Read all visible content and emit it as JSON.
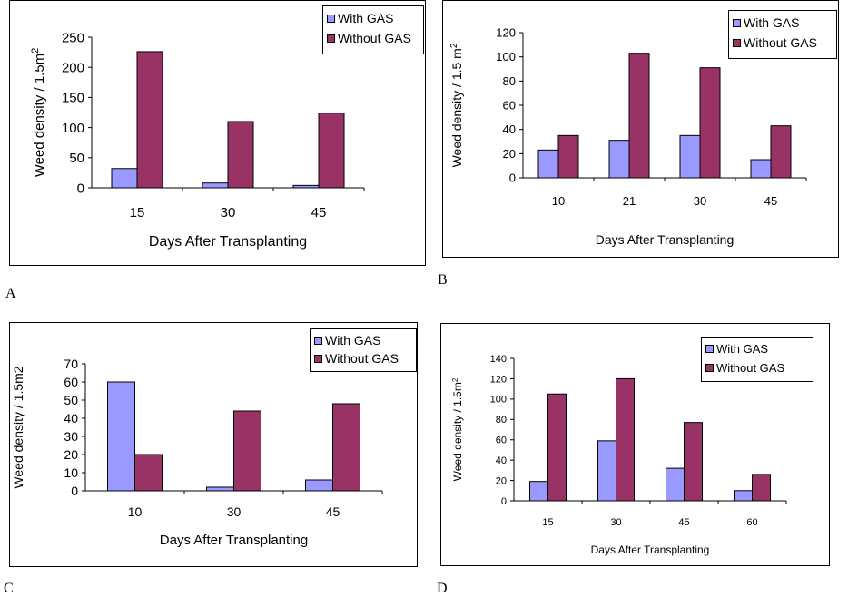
{
  "colors": {
    "with_gas": "#9999ff",
    "without_gas": "#993366",
    "axis": "#000000"
  },
  "panel_letters": [
    "A",
    "B",
    "C",
    "D"
  ],
  "chart_data": [
    {
      "type": "bar",
      "panel": "A",
      "categories": [
        "15",
        "30",
        "45"
      ],
      "series": [
        {
          "name": "With GAS",
          "values": [
            32,
            8,
            4
          ]
        },
        {
          "name": "Without GAS",
          "values": [
            226,
            110,
            124
          ]
        }
      ],
      "xlabel": "Days After Transplanting",
      "ylabel": "Weed density / 1.5m",
      "ylabel_sup": "2",
      "ylim": [
        0,
        250
      ],
      "yticks": [
        "0",
        "50",
        "100",
        "150",
        "200",
        "250"
      ],
      "legend": "top-right"
    },
    {
      "type": "bar",
      "panel": "B",
      "categories": [
        "10",
        "21",
        "30",
        "45"
      ],
      "series": [
        {
          "name": "With GAS",
          "values": [
            23,
            31,
            35,
            15
          ]
        },
        {
          "name": "Without GAS",
          "values": [
            35,
            103,
            91,
            43
          ]
        }
      ],
      "xlabel": "Days After Transplanting",
      "ylabel": "Weed density / 1.5 m",
      "ylabel_sup": "2",
      "ylim": [
        0,
        120
      ],
      "yticks": [
        "0",
        "20",
        "40",
        "60",
        "80",
        "100",
        "120"
      ],
      "legend": "top-right"
    },
    {
      "type": "bar",
      "panel": "C",
      "categories": [
        "10",
        "30",
        "45"
      ],
      "series": [
        {
          "name": "With GAS",
          "values": [
            60,
            2,
            6
          ]
        },
        {
          "name": "Without GAS",
          "values": [
            20,
            44,
            48
          ]
        }
      ],
      "xlabel": "Days After Transplanting",
      "ylabel": "Weed density / 1.5m2",
      "ylabel_sup": "",
      "ylim": [
        0,
        70
      ],
      "yticks": [
        "0",
        "10",
        "20",
        "30",
        "40",
        "50",
        "60",
        "70"
      ],
      "legend": "top-right"
    },
    {
      "type": "bar",
      "panel": "D",
      "categories": [
        "15",
        "30",
        "45",
        "60"
      ],
      "series": [
        {
          "name": "With GAS",
          "values": [
            19,
            59,
            32,
            10
          ]
        },
        {
          "name": "Without GAS",
          "values": [
            105,
            120,
            77,
            26
          ]
        }
      ],
      "xlabel": "Days After Transplanting",
      "ylabel": "Weed density / 1.5m",
      "ylabel_sup": "2",
      "ylim": [
        0,
        140
      ],
      "yticks": [
        "0",
        "20",
        "40",
        "60",
        "80",
        "100",
        "120",
        "140"
      ],
      "legend": "top-right"
    }
  ]
}
